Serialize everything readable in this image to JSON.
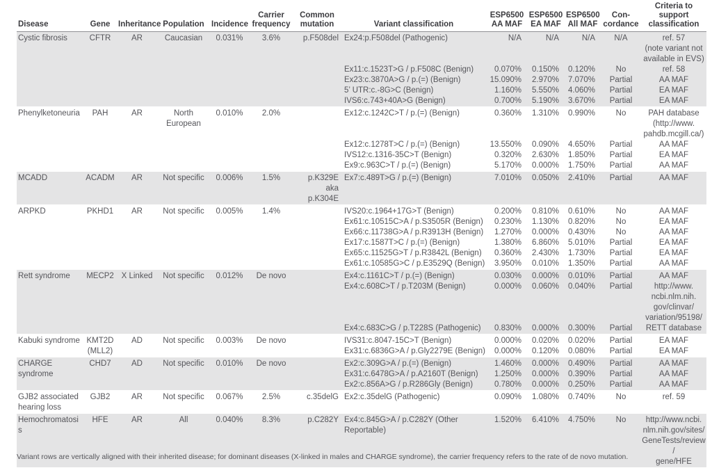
{
  "table": {
    "headers": [
      "Disease",
      "Gene",
      "Inheritance",
      "Population",
      "Incidence",
      "Carrier\nfrequency",
      "Common\nmutation",
      "Variant classification",
      "ESP6500\nAA MAF",
      "ESP6500\nEA MAF",
      "ESP6500\nAll MAF",
      "Con-\ncordance",
      "Criteria to\nsupport\nclassification"
    ],
    "groups": [
      {
        "disease": "Cystic fibrosis",
        "gene": "CFTR",
        "inheritance": "AR",
        "population": "Caucasian",
        "incidence": "0.031%",
        "carrier_frequency": "3.6%",
        "common_mutation": "p.F508del",
        "variants": [
          {
            "classification": "Ex24:p.F508del (Pathogenic)",
            "aa_maf": "N/A",
            "ea_maf": "N/A",
            "all_maf": "N/A",
            "concordance": "N/A",
            "criteria": "ref. 57\n(note variant not\navailable in EVS)"
          },
          {
            "classification": "Ex11:c.1523T>G / p.F508C (Benign)",
            "aa_maf": "0.070%",
            "ea_maf": "0.150%",
            "all_maf": "0.120%",
            "concordance": "No",
            "criteria": "ref. 58"
          },
          {
            "classification": "Ex23:c.3870A>G / p.(=) (Benign)",
            "aa_maf": "15.090%",
            "ea_maf": "2.970%",
            "all_maf": "7.070%",
            "concordance": "Partial",
            "criteria": "AA MAF"
          },
          {
            "classification": "5’ UTR:c.-8G>C (Benign)",
            "aa_maf": "1.160%",
            "ea_maf": "5.550%",
            "all_maf": "4.060%",
            "concordance": "Partial",
            "criteria": "EA MAF"
          },
          {
            "classification": "IVS6:c.743+40A>G (Benign)",
            "aa_maf": "0.700%",
            "ea_maf": "5.190%",
            "all_maf": "3.670%",
            "concordance": "Partial",
            "criteria": "EA MAF"
          }
        ]
      },
      {
        "disease": "Phenylketoneuria",
        "gene": "PAH",
        "inheritance": "AR",
        "population": "North\nEuropean",
        "incidence": "0.010%",
        "carrier_frequency": "2.0%",
        "common_mutation": "",
        "variants": [
          {
            "classification": "Ex12:c.1242C>T / p.(=) (Benign)",
            "aa_maf": "0.360%",
            "ea_maf": "1.310%",
            "all_maf": "0.990%",
            "concordance": "No",
            "criteria": "PAH database\n(http://www.\npahdb.mcgill.ca/)"
          },
          {
            "classification": "Ex12:c.1278T>C / p.(=) (Benign)",
            "aa_maf": "13.550%",
            "ea_maf": "0.090%",
            "all_maf": "4.650%",
            "concordance": "Partial",
            "criteria": "AA MAF"
          },
          {
            "classification": "IVS12:c.1316-35C>T (Benign)",
            "aa_maf": "0.320%",
            "ea_maf": "2.630%",
            "all_maf": "1.850%",
            "concordance": "Partial",
            "criteria": "EA MAF"
          },
          {
            "classification": "Ex9:c.963C>T / p.(=) (Benign)",
            "aa_maf": "5.170%",
            "ea_maf": "0.000%",
            "all_maf": "1.750%",
            "concordance": "Partial",
            "criteria": "AA MAF"
          }
        ]
      },
      {
        "disease": "MCADD",
        "gene": "ACADM",
        "inheritance": "AR",
        "population": "Not specific",
        "incidence": "0.006%",
        "carrier_frequency": "1.5%",
        "common_mutation": "p.K329E\naka p.K304E",
        "variants": [
          {
            "classification": "Ex7:c.489T>G / p.(=) (Benign)",
            "aa_maf": "7.010%",
            "ea_maf": "0.050%",
            "all_maf": "2.410%",
            "concordance": "Partial",
            "criteria": "AA MAF"
          }
        ]
      },
      {
        "disease": "ARPKD",
        "gene": "PKHD1",
        "inheritance": "AR",
        "population": "Not specific",
        "incidence": "0.005%",
        "carrier_frequency": "1.4%",
        "common_mutation": "",
        "variants": [
          {
            "classification": "IVS20:c.1964+17G>T (Benign)",
            "aa_maf": "0.200%",
            "ea_maf": "0.810%",
            "all_maf": "0.610%",
            "concordance": "No",
            "criteria": "AA MAF"
          },
          {
            "classification": "Ex61:c.10515C>A / p.S3505R (Benign)",
            "aa_maf": "0.230%",
            "ea_maf": "1.130%",
            "all_maf": "0.820%",
            "concordance": "No",
            "criteria": "EA MAF"
          },
          {
            "classification": "Ex66:c.11738G>A / p.R3913H (Benign)",
            "aa_maf": "1.270%",
            "ea_maf": "0.000%",
            "all_maf": "0.430%",
            "concordance": "No",
            "criteria": "AA MAF"
          },
          {
            "classification": "Ex17:c.1587T>C / p.(=) (Benign)",
            "aa_maf": "1.380%",
            "ea_maf": "6.860%",
            "all_maf": "5.010%",
            "concordance": "Partial",
            "criteria": "EA MAF"
          },
          {
            "classification": "Ex65:c.11525G>T / p.R3842L (Benign)",
            "aa_maf": "0.360%",
            "ea_maf": "2.430%",
            "all_maf": "1.730%",
            "concordance": "Partial",
            "criteria": "EA MAF"
          },
          {
            "classification": "Ex61:c.10585G>C / p.E3529Q (Benign)",
            "aa_maf": "3.950%",
            "ea_maf": "0.010%",
            "all_maf": "1.350%",
            "concordance": "Partial",
            "criteria": "AA MAF"
          }
        ]
      },
      {
        "disease": "Rett syndrome",
        "gene": "MECP2",
        "inheritance": "X Linked",
        "population": "Not specific",
        "incidence": "0.012%",
        "carrier_frequency": "De novo",
        "common_mutation": "",
        "variants": [
          {
            "classification": "Ex4:c.1161C>T / p.(=) (Benign)",
            "aa_maf": "0.030%",
            "ea_maf": "0.000%",
            "all_maf": "0.010%",
            "concordance": "Partial",
            "criteria": "AA MAF"
          },
          {
            "classification": "Ex4:c.608C>T / p.T203M (Benign)",
            "aa_maf": "0.000%",
            "ea_maf": "0.060%",
            "all_maf": "0.040%",
            "concordance": "Partial",
            "criteria": "http://www.\nncbi.nlm.nih.\ngov/clinvar/\nvariation/95198/"
          },
          {
            "classification": "Ex4:c.683C>G / p.T228S (Pathogenic)",
            "aa_maf": "0.830%",
            "ea_maf": "0.000%",
            "all_maf": "0.300%",
            "concordance": "Partial",
            "criteria": "RETT database"
          }
        ]
      },
      {
        "disease": "Kabuki syndrome",
        "gene": "KMT2D\n(MLL2)",
        "inheritance": "AD",
        "population": "Not specific",
        "incidence": "0.003%",
        "carrier_frequency": "De novo",
        "common_mutation": "",
        "variants": [
          {
            "classification": "IVS31:c.8047-15C>T (Benign)",
            "aa_maf": "0.000%",
            "ea_maf": "0.020%",
            "all_maf": "0.020%",
            "concordance": "Partial",
            "criteria": "EA MAF"
          },
          {
            "classification": "Ex31:c.6836G>A / p.Gly2279E (Benign)",
            "aa_maf": "0.000%",
            "ea_maf": "0.120%",
            "all_maf": "0.080%",
            "concordance": "Partial",
            "criteria": "EA MAF"
          }
        ]
      },
      {
        "disease": "CHARGE syndrome",
        "gene": "CHD7",
        "inheritance": "AD",
        "population": "Not specific",
        "incidence": "0.010%",
        "carrier_frequency": "De novo",
        "common_mutation": "",
        "variants": [
          {
            "classification": "Ex2:c.309G>A / p.(=) (Benign)",
            "aa_maf": "1.460%",
            "ea_maf": "0.000%",
            "all_maf": "0.490%",
            "concordance": "Partial",
            "criteria": "AA MAF"
          },
          {
            "classification": "Ex31:c.6478G>A / p.A2160T (Benign)",
            "aa_maf": "1.250%",
            "ea_maf": "0.000%",
            "all_maf": "0.390%",
            "concordance": "Partial",
            "criteria": "AA MAF"
          },
          {
            "classification": "Ex2:c.856A>G / p.R286Gly (Benign)",
            "aa_maf": "0.780%",
            "ea_maf": "0.000%",
            "all_maf": "0.250%",
            "concordance": "Partial",
            "criteria": "AA MAF"
          }
        ]
      },
      {
        "disease": "GJB2 associated\nhearing loss",
        "gene": "GJB2",
        "inheritance": "AR",
        "population": "Not specific",
        "incidence": "0.067%",
        "carrier_frequency": "2.5%",
        "common_mutation": "c.35delG",
        "variants": [
          {
            "classification": "Ex2:c.35delG (Pathogenic)",
            "aa_maf": "0.090%",
            "ea_maf": "1.080%",
            "all_maf": "0.740%",
            "concordance": "No",
            "criteria": "ref. 59"
          }
        ]
      },
      {
        "disease": "Hemochromatosis",
        "gene": "HFE",
        "inheritance": "AR",
        "population": "All",
        "incidence": "0.040%",
        "carrier_frequency": "8.3%",
        "common_mutation": "p.C282Y",
        "variants": [
          {
            "classification": "Ex4:c.845G>A / p.C282Y (Other\nReportable)",
            "aa_maf": "1.520%",
            "ea_maf": "6.410%",
            "all_maf": "4.750%",
            "concordance": "No",
            "criteria": "http://www.ncbi.\nnlm.nih.gov/sites/\nGeneTests/review/\ngene/HFE"
          }
        ]
      }
    ]
  },
  "footnote": "Variant rows are vertically aligned with their inherited disease; for dominant diseases (X-linked in males and CHARGE syndrome), the carrier frequency refers to the rate of de novo mutation."
}
